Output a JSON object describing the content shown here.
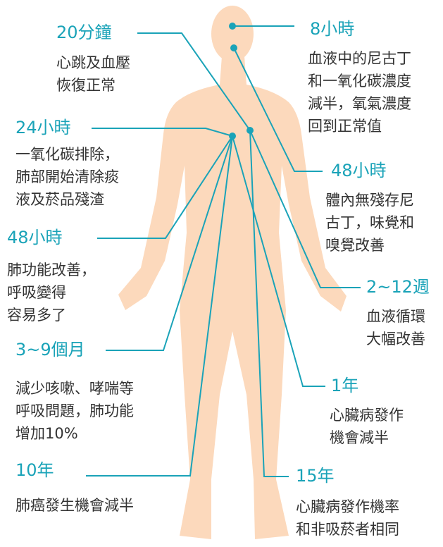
{
  "items": [
    {
      "time": "20分鐘",
      "lines": [
        "心跳及血壓",
        "恢復正常"
      ]
    },
    {
      "time": "24小時",
      "lines": [
        "一氧化碳排除，",
        "肺部開始清除痰",
        "液及菸品殘渣"
      ]
    },
    {
      "time": "48小時",
      "lines": [
        "肺功能改善，",
        "呼吸變得",
        "容易多了"
      ]
    },
    {
      "time": "3~9個月",
      "lines": [
        "減少咳嗽、哮喘等",
        "呼吸問題，肺功能",
        "增加10%"
      ]
    },
    {
      "time": "10年",
      "lines": [
        "肺癌發生機會減半"
      ]
    },
    {
      "time": "8小時",
      "lines": [
        "血液中的尼古丁",
        "和一氧化碳濃度",
        "減半，氧氣濃度",
        "回到正常值"
      ]
    },
    {
      "time": "48小時",
      "lines": [
        "體內無殘存尼",
        "古丁，味覺和",
        "嗅覺改善"
      ]
    },
    {
      "time": "2~12週",
      "lines": [
        "血液循環",
        "大幅改善"
      ]
    },
    {
      "time": "1年",
      "lines": [
        "心臟病發作",
        "機會減半"
      ]
    },
    {
      "time": "15年",
      "lines": [
        "心臟病發作機率",
        "和非吸菸者相同"
      ]
    }
  ]
}
